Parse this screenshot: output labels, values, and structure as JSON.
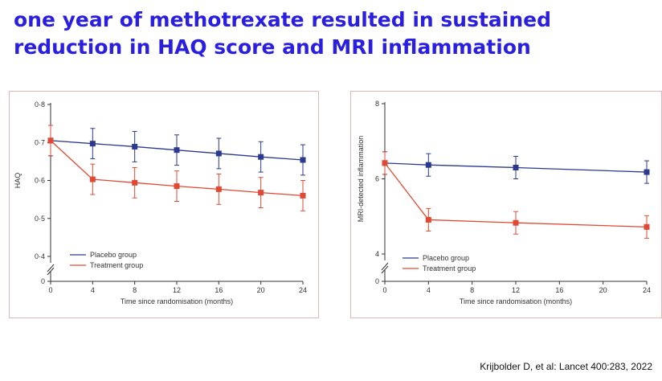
{
  "slide": {
    "title_line1": "one year of methotrexate resulted in sustained",
    "title_line2": "reduction in HAQ score and MRI inflammation",
    "citation": "Krijbolder D, et al: Lancet 400:283, 2022",
    "title_color": "#2a1fe0"
  },
  "chart_data": [
    {
      "type": "line",
      "xlabel": "Time since randomisation (months)",
      "ylabel": "HAQ",
      "x": [
        0,
        4,
        8,
        12,
        16,
        20,
        24
      ],
      "xticks": [
        "0",
        "4",
        "8",
        "12",
        "16",
        "20",
        "24"
      ],
      "yticks": [
        "0",
        "0·4",
        "0·5",
        "0·6",
        "0·7",
        "0·8"
      ],
      "ylim": [
        0.4,
        0.8
      ],
      "axis_break": true,
      "legend_position": "bottom-left",
      "grid": false,
      "series": [
        {
          "name": "Placebo group",
          "color": "#2b3a8f",
          "marker": "square",
          "values": [
            0.705,
            0.697,
            0.689,
            0.68,
            0.671,
            0.662,
            0.654
          ],
          "error": [
            0.04,
            0.04,
            0.04,
            0.04,
            0.04,
            0.04,
            0.04
          ]
        },
        {
          "name": "Treatment group",
          "color": "#e04a35",
          "marker": "square",
          "values": [
            0.705,
            0.603,
            0.594,
            0.585,
            0.577,
            0.568,
            0.56
          ],
          "error": [
            0.04,
            0.04,
            0.04,
            0.04,
            0.04,
            0.04,
            0.04
          ]
        }
      ]
    },
    {
      "type": "line",
      "xlabel": "Time since randomisation (months)",
      "ylabel": "MRI-detected inflammation",
      "x": [
        0,
        4,
        12,
        24
      ],
      "xticks": [
        "0",
        "4",
        "8",
        "12",
        "16",
        "20",
        "24"
      ],
      "xtick_values": [
        0,
        4,
        8,
        12,
        16,
        20,
        24
      ],
      "yticks": [
        "0",
        "4",
        "6",
        "8"
      ],
      "ylim": [
        4,
        8
      ],
      "axis_break": true,
      "legend_position": "bottom-left",
      "grid": false,
      "series": [
        {
          "name": "Placebo group",
          "color": "#2b3a8f",
          "marker": "square",
          "values": [
            6.42,
            6.37,
            6.3,
            6.18
          ],
          "error": [
            0.3,
            0.3,
            0.3,
            0.3
          ]
        },
        {
          "name": "Treatment group",
          "color": "#e04a35",
          "marker": "square",
          "values": [
            6.42,
            4.91,
            4.83,
            4.72
          ],
          "error": [
            0.3,
            0.3,
            0.3,
            0.3
          ]
        }
      ]
    }
  ]
}
